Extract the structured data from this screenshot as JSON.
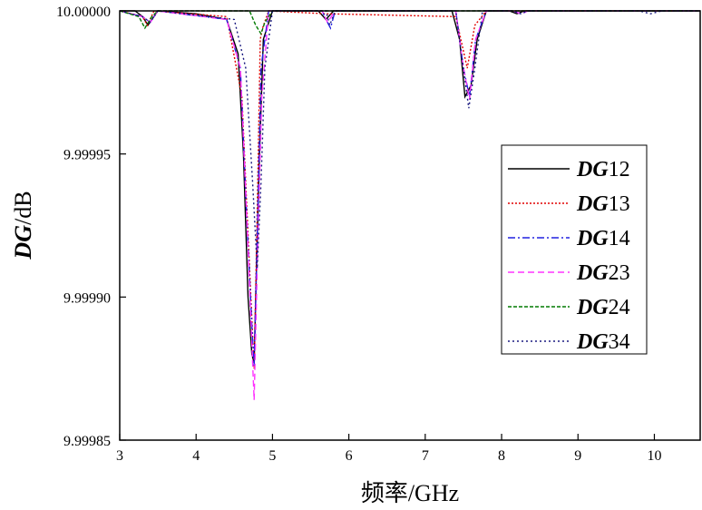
{
  "chart_data": {
    "type": "line",
    "xlabel": "频率/GHz",
    "ylabel": "DG/dB",
    "ylabel_italic_part": "DG",
    "ylabel_rest": "/dB",
    "xlim": [
      3,
      10.6
    ],
    "ylim": [
      9.99985,
      10.0
    ],
    "x_ticks": [
      3,
      4,
      5,
      6,
      7,
      8,
      9,
      10
    ],
    "y_ticks": [
      9.99985,
      9.9999,
      9.99995,
      10.0
    ],
    "y_tick_labels": [
      "9.99985",
      "9.99990",
      "9.99995",
      "10.00000"
    ],
    "grid": false,
    "legend_position": "right",
    "series": [
      {
        "name": "DG12",
        "name_italic": "DG",
        "name_num": "12",
        "color": "#000000",
        "dash": "",
        "points": [
          [
            3.0,
            10.0
          ],
          [
            3.2,
            10.0
          ],
          [
            3.3,
            9.999998
          ],
          [
            3.37,
            9.999995
          ],
          [
            3.42,
            9.999997
          ],
          [
            3.5,
            10.0
          ],
          [
            4.0,
            9.999999
          ],
          [
            4.4,
            9.999997
          ],
          [
            4.55,
            9.999985
          ],
          [
            4.62,
            9.99995
          ],
          [
            4.68,
            9.9999
          ],
          [
            4.73,
            9.99988
          ],
          [
            4.76,
            9.999877
          ],
          [
            4.79,
            9.99991
          ],
          [
            4.83,
            9.99995
          ],
          [
            4.88,
            9.99999
          ],
          [
            5.0,
            10.0
          ],
          [
            5.6,
            10.0
          ],
          [
            5.7,
            9.999997
          ],
          [
            5.8,
            10.0
          ],
          [
            7.35,
            10.0
          ],
          [
            7.45,
            9.99999
          ],
          [
            7.52,
            9.99997
          ],
          [
            7.6,
            9.999974
          ],
          [
            7.68,
            9.99999
          ],
          [
            7.8,
            10.0
          ],
          [
            8.1,
            10.0
          ],
          [
            8.2,
            9.999999
          ],
          [
            8.3,
            10.0
          ],
          [
            10.6,
            10.0
          ]
        ]
      },
      {
        "name": "DG13",
        "name_italic": "DG",
        "name_num": "13",
        "color": "#e00000",
        "dash": "2,2",
        "points": [
          [
            3.0,
            10.0
          ],
          [
            3.3,
            9.999998
          ],
          [
            3.36,
            9.999995
          ],
          [
            3.45,
            10.0
          ],
          [
            4.4,
            9.999998
          ],
          [
            4.6,
            9.99997
          ],
          [
            4.7,
            9.99991
          ],
          [
            4.76,
            9.999875
          ],
          [
            4.8,
            9.99993
          ],
          [
            4.84,
            9.99999
          ],
          [
            4.87,
            9.999994
          ],
          [
            4.95,
            10.0
          ],
          [
            5.7,
            9.999999
          ],
          [
            7.4,
            9.999998
          ],
          [
            7.55,
            9.99998
          ],
          [
            7.65,
            9.999995
          ],
          [
            7.8,
            10.0
          ],
          [
            10.6,
            10.0
          ]
        ]
      },
      {
        "name": "DG14",
        "name_italic": "DG",
        "name_num": "14",
        "color": "#2020e0",
        "dash": "8,3,2,3",
        "points": [
          [
            3.0,
            10.0
          ],
          [
            3.3,
            9.999998
          ],
          [
            3.4,
            9.999996
          ],
          [
            3.5,
            10.0
          ],
          [
            4.4,
            9.999997
          ],
          [
            4.58,
            9.99998
          ],
          [
            4.66,
            9.99993
          ],
          [
            4.73,
            9.99989
          ],
          [
            4.76,
            9.999876
          ],
          [
            4.8,
            9.99992
          ],
          [
            4.85,
            9.99998
          ],
          [
            4.95,
            10.0
          ],
          [
            5.65,
            10.0
          ],
          [
            5.72,
            9.999996
          ],
          [
            5.76,
            9.999994
          ],
          [
            5.82,
            10.0
          ],
          [
            7.4,
            10.0
          ],
          [
            7.5,
            9.99998
          ],
          [
            7.58,
            9.99997
          ],
          [
            7.66,
            9.99999
          ],
          [
            7.8,
            10.0
          ],
          [
            8.15,
            10.0
          ],
          [
            8.25,
            9.999999
          ],
          [
            8.35,
            10.0
          ],
          [
            10.6,
            10.0
          ]
        ]
      },
      {
        "name": "DG23",
        "name_italic": "DG",
        "name_num": "23",
        "color": "#ff33ff",
        "dash": "7,4",
        "points": [
          [
            3.0,
            10.0
          ],
          [
            3.3,
            9.999998
          ],
          [
            3.4,
            9.999996
          ],
          [
            3.5,
            10.0
          ],
          [
            4.4,
            9.999997
          ],
          [
            4.58,
            9.99998
          ],
          [
            4.66,
            9.99993
          ],
          [
            4.72,
            9.99989
          ],
          [
            4.76,
            9.999864
          ],
          [
            4.8,
            9.99991
          ],
          [
            4.86,
            9.99997
          ],
          [
            4.95,
            10.0
          ],
          [
            5.65,
            10.0
          ],
          [
            5.72,
            9.999996
          ],
          [
            5.82,
            10.0
          ],
          [
            7.4,
            10.0
          ],
          [
            7.5,
            9.99998
          ],
          [
            7.58,
            9.999969
          ],
          [
            7.66,
            9.99999
          ],
          [
            7.8,
            10.0
          ],
          [
            8.15,
            10.0
          ],
          [
            8.25,
            9.999999
          ],
          [
            8.35,
            10.0
          ],
          [
            10.6,
            10.0
          ]
        ]
      },
      {
        "name": "DG24",
        "name_italic": "DG",
        "name_num": "24",
        "color": "#007a00",
        "dash": "4,2",
        "points": [
          [
            3.0,
            10.0
          ],
          [
            3.25,
            9.999998
          ],
          [
            3.33,
            9.999994
          ],
          [
            3.42,
            9.999998
          ],
          [
            3.5,
            10.0
          ],
          [
            4.7,
            10.0
          ],
          [
            4.78,
            9.999995
          ],
          [
            4.85,
            9.999992
          ],
          [
            4.9,
            9.999996
          ],
          [
            5.0,
            10.0
          ],
          [
            10.6,
            10.0
          ]
        ]
      },
      {
        "name": "DG34",
        "name_italic": "DG",
        "name_num": "34",
        "color": "#1a1a80",
        "dash": "2,3",
        "points": [
          [
            3.0,
            10.0
          ],
          [
            3.3,
            9.999998
          ],
          [
            3.4,
            9.999996
          ],
          [
            3.5,
            10.0
          ],
          [
            4.5,
            9.999997
          ],
          [
            4.65,
            9.99998
          ],
          [
            4.74,
            9.99994
          ],
          [
            4.8,
            9.99991
          ],
          [
            4.85,
            9.99994
          ],
          [
            4.9,
            9.99998
          ],
          [
            5.0,
            10.0
          ],
          [
            5.7,
            10.0
          ],
          [
            5.75,
            9.999995
          ],
          [
            5.82,
            10.0
          ],
          [
            7.4,
            10.0
          ],
          [
            7.5,
            9.99998
          ],
          [
            7.57,
            9.999966
          ],
          [
            7.65,
            9.99998
          ],
          [
            7.75,
            10.0
          ],
          [
            8.15,
            10.0
          ],
          [
            8.25,
            9.999999
          ],
          [
            8.35,
            10.0
          ],
          [
            9.8,
            10.0
          ],
          [
            9.95,
            9.999999
          ],
          [
            10.1,
            10.0
          ],
          [
            10.6,
            10.0
          ]
        ]
      }
    ]
  }
}
